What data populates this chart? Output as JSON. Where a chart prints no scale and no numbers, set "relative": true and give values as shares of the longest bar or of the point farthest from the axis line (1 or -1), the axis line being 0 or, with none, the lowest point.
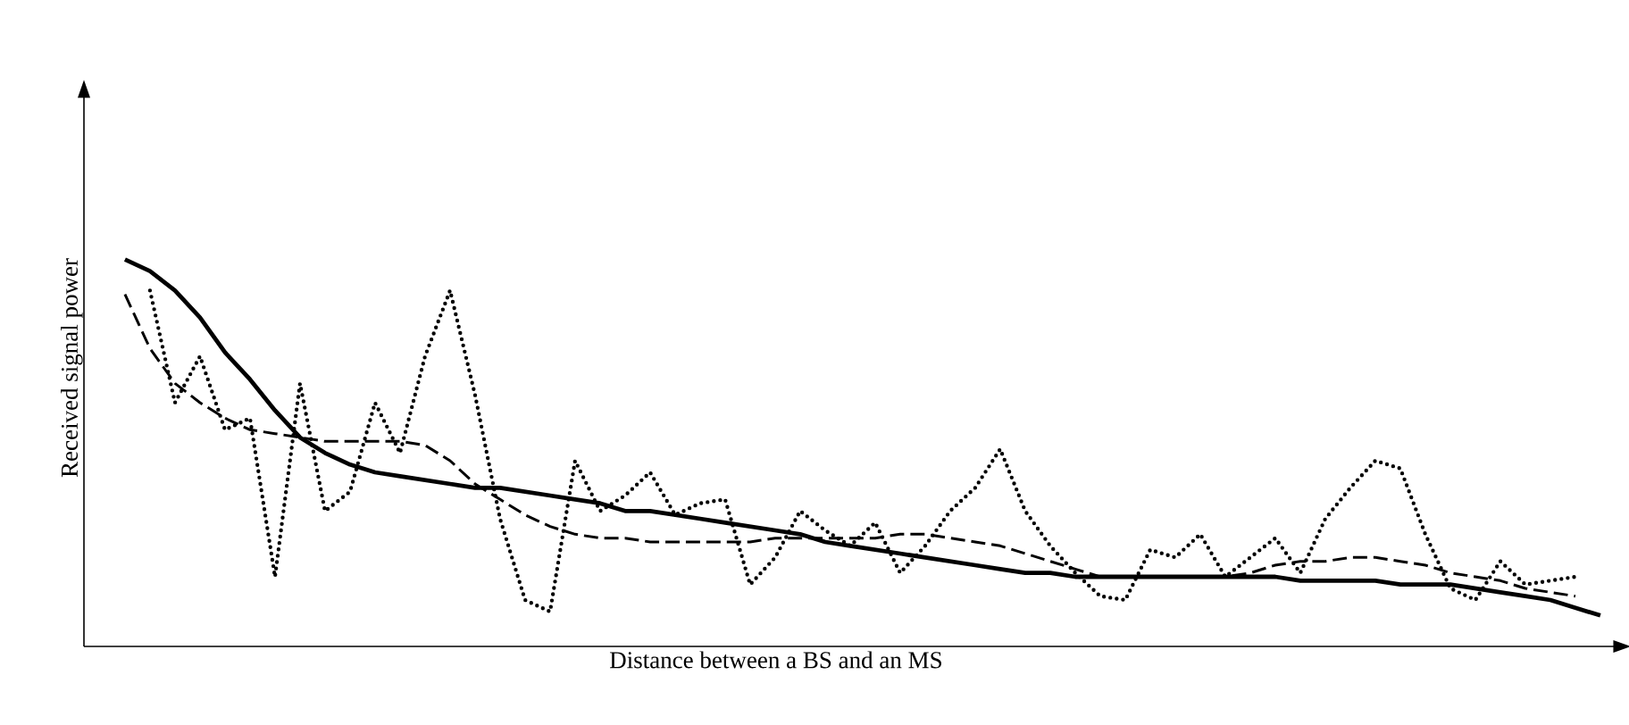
{
  "chart_data": {
    "type": "line",
    "relative": true,
    "xlabel": "Distance between a BS and an MS",
    "ylabel": "Received signal power",
    "categories": [
      null,
      null,
      null,
      null,
      null,
      null,
      null,
      null,
      null,
      null,
      null,
      null,
      null,
      null,
      null,
      null,
      null,
      null,
      null,
      null,
      null,
      null,
      null,
      null,
      null,
      null,
      null,
      null,
      null,
      null,
      null,
      null,
      null,
      null,
      null,
      null,
      null,
      null,
      null,
      null,
      null,
      null,
      null,
      null,
      null,
      null,
      null,
      null,
      null,
      null,
      null,
      null,
      null,
      null,
      null,
      null,
      null,
      null,
      null,
      null
    ],
    "series": [
      {
        "color": "#000000",
        "line_style": "dotted",
        "values": [
          null,
          0.92,
          0.63,
          0.75,
          0.56,
          0.59,
          0.18,
          0.68,
          0.35,
          0.4,
          0.63,
          0.5,
          0.75,
          0.92,
          0.65,
          0.33,
          0.12,
          0.09,
          0.48,
          0.35,
          0.39,
          0.45,
          0.34,
          0.37,
          0.38,
          0.16,
          0.23,
          0.35,
          0.3,
          0.26,
          0.32,
          0.19,
          0.26,
          0.35,
          0.41,
          0.51,
          0.35,
          0.26,
          0.19,
          0.13,
          0.12,
          0.25,
          0.23,
          0.29,
          0.18,
          0.23,
          0.28,
          0.19,
          0.33,
          0.41,
          0.48,
          0.46,
          0.29,
          0.15,
          0.12,
          0.22,
          0.16,
          0.17,
          0.18,
          null
        ]
      },
      {
        "color": "#000000",
        "line_style": "dashed",
        "values": [
          0.91,
          0.77,
          0.68,
          0.63,
          0.59,
          0.56,
          0.55,
          0.54,
          0.53,
          0.53,
          0.53,
          0.53,
          0.52,
          0.48,
          0.42,
          0.38,
          0.34,
          0.31,
          0.29,
          0.28,
          0.28,
          0.27,
          0.27,
          0.27,
          0.27,
          0.27,
          0.28,
          0.28,
          0.28,
          0.28,
          0.28,
          0.29,
          0.29,
          0.28,
          0.27,
          0.26,
          0.24,
          0.22,
          0.2,
          0.18,
          0.18,
          0.18,
          0.18,
          0.18,
          0.18,
          0.19,
          0.21,
          0.22,
          0.22,
          0.23,
          0.23,
          0.22,
          0.21,
          0.19,
          0.18,
          0.17,
          0.15,
          0.14,
          0.13,
          null
        ]
      },
      {
        "color": "#000000",
        "line_style": "solid",
        "values": [
          1.0,
          0.97,
          0.92,
          0.85,
          0.76,
          0.69,
          0.61,
          0.54,
          0.5,
          0.47,
          0.45,
          0.44,
          0.43,
          0.42,
          0.41,
          0.41,
          0.4,
          0.39,
          0.38,
          0.37,
          0.35,
          0.35,
          0.34,
          0.33,
          0.32,
          0.31,
          0.3,
          0.29,
          0.27,
          0.26,
          0.25,
          0.24,
          0.23,
          0.22,
          0.21,
          0.2,
          0.19,
          0.19,
          0.18,
          0.18,
          0.18,
          0.18,
          0.18,
          0.18,
          0.18,
          0.18,
          0.18,
          0.17,
          0.17,
          0.17,
          0.17,
          0.16,
          0.16,
          0.16,
          0.15,
          0.14,
          0.13,
          0.12,
          0.1,
          0.08
        ]
      }
    ]
  }
}
